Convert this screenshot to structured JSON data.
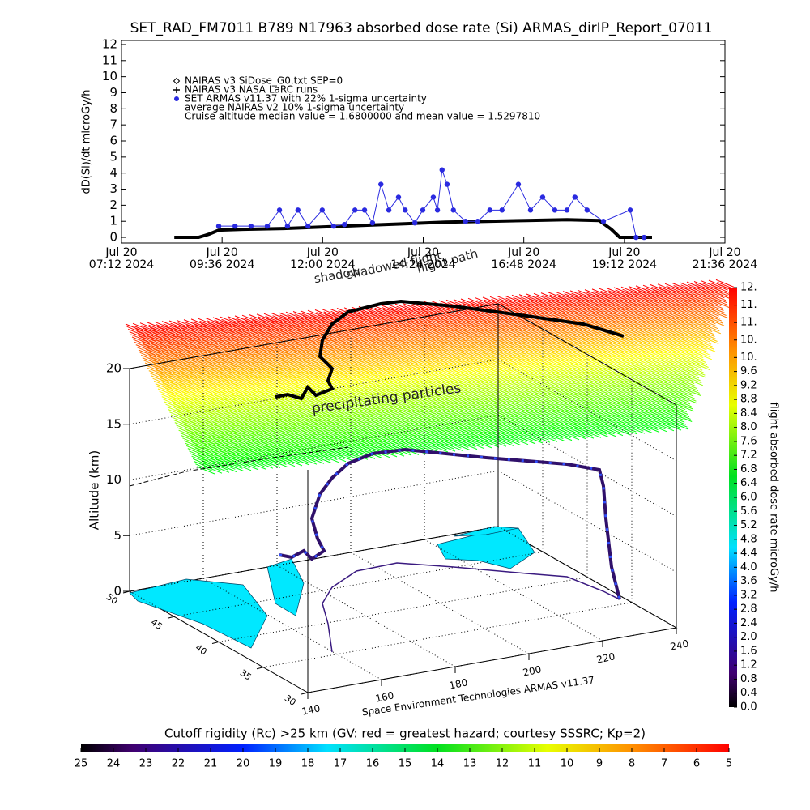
{
  "chart_data": {
    "type": "line",
    "title": "SET_RAD_FM7011  B789 N17963 absorbed dose rate (Si) ARMAS_dirIP_Report_07011",
    "y_label": "dD(Si)/dt microGy/h",
    "legend_notes": [
      "NAIRAS v3 SiDose_G0.txt SEP=0",
      "average NAIRAS v2 10% 1-sigma uncertainty",
      "Cruise altitude median value = 1.6800000 and mean value = 1.5297810"
    ],
    "series": [
      {
        "name": "NAIRAS v3 NASA LaRC runs",
        "color": "#000000",
        "x": [
          8.46,
          9.04,
          9.29,
          9.52,
          10.1,
          11.07,
          12.03,
          13.0,
          13.96,
          14.93,
          15.9,
          16.86,
          17.83,
          18.6,
          18.89,
          19.09,
          19.86
        ],
        "values": [
          0,
          0,
          0.2,
          0.45,
          0.5,
          0.55,
          0.65,
          0.75,
          0.85,
          0.95,
          1.0,
          1.05,
          1.1,
          1.05,
          0.5,
          0,
          0
        ]
      },
      {
        "name": "SET ARMAS v11.37 with 22% 1-sigma uncertainty",
        "color": "#2a2ae0",
        "x": [
          9.52,
          9.91,
          10.29,
          10.68,
          10.97,
          11.16,
          11.41,
          11.65,
          11.99,
          12.26,
          12.52,
          12.77,
          13.0,
          13.19,
          13.39,
          13.58,
          13.81,
          13.97,
          14.2,
          14.39,
          14.64,
          14.74,
          14.85,
          14.97,
          15.12,
          15.41,
          15.7,
          15.99,
          16.28,
          16.67,
          16.96,
          17.25,
          17.54,
          17.83,
          18.02,
          18.31,
          18.7,
          19.34,
          19.48,
          19.67
        ],
        "values": [
          0.7,
          0.7,
          0.7,
          0.7,
          1.7,
          0.7,
          1.7,
          0.7,
          1.7,
          0.7,
          0.8,
          1.7,
          1.7,
          0.9,
          3.3,
          1.7,
          2.5,
          1.7,
          0.9,
          1.7,
          2.5,
          1.7,
          4.2,
          3.3,
          1.7,
          1.0,
          1.0,
          1.7,
          1.7,
          3.3,
          1.7,
          2.5,
          1.7,
          1.7,
          2.5,
          1.7,
          1.0,
          1.7,
          0,
          0
        ]
      }
    ],
    "xlim": [
      7.2,
      21.6
    ],
    "xticks": [
      {
        "value": 7.2,
        "label": "Jul 20\n07:12 2024"
      },
      {
        "value": 9.6,
        "label": "Jul 20\n09:36 2024"
      },
      {
        "value": 12.0,
        "label": "Jul 20\n12:00 2024"
      },
      {
        "value": 14.4,
        "label": "Jul 20\n14:24 2024"
      },
      {
        "value": 16.8,
        "label": "Jul 20\n16:48 2024"
      },
      {
        "value": 19.2,
        "label": "Jul 20\n19:12 2024"
      },
      {
        "value": 21.6,
        "label": "Jul 20\n21:36 2024"
      }
    ],
    "ylim": [
      -0.35,
      12.25
    ],
    "yticks": [
      0,
      1,
      2,
      3,
      4,
      5,
      6,
      7,
      8,
      9,
      10,
      11,
      12
    ]
  },
  "plot3d": {
    "z_label": "Altitude (km)",
    "zlim": [
      0,
      20
    ],
    "zticks": [
      0,
      5,
      10,
      15,
      20
    ],
    "lat_lim": [
      30,
      50
    ],
    "lat_ticks": [
      50,
      45,
      40,
      35,
      30
    ],
    "lon_lim": [
      140,
      240
    ],
    "lon_ticks": [
      140,
      160,
      180,
      200,
      220,
      240
    ],
    "annotations": [
      "precipitating particles",
      "shadow",
      "shadowed flight",
      "flight path"
    ],
    "credit": "Space Environment Technologies ARMAS v11.37"
  },
  "dose_colorbar": {
    "label": "flight absorbed dose rate microGy/h",
    "lim": [
      0,
      12
    ],
    "ticks": [
      {
        "value": 0,
        "label": "0.0"
      },
      0.4,
      0.8,
      1.2,
      1.6,
      {
        "value": 2,
        "label": "2.0"
      },
      2.4,
      2.8,
      3.2,
      3.6,
      {
        "value": 4,
        "label": "4.0"
      },
      4.4,
      4.8,
      5.2,
      5.6,
      {
        "value": 6,
        "label": "6.0"
      },
      6.4,
      6.8,
      7.2,
      7.6,
      {
        "value": 8,
        "label": "8.0"
      },
      8.4,
      8.8,
      9.2,
      9.6,
      {
        "value": 10,
        "label": "10."
      },
      {
        "value": 10.5,
        "label": "10."
      },
      {
        "value": 11,
        "label": "11."
      },
      {
        "value": 11.5,
        "label": "11."
      },
      {
        "value": 12,
        "label": "12."
      }
    ]
  },
  "rigidity_colorbar": {
    "label": "Cutoff rigidity (Rc) >25 km (GV: red = greatest hazard; courtesy SSSRC; Kp=2)",
    "lim": [
      25,
      5
    ],
    "ticks": [
      25,
      24,
      23,
      22,
      21,
      20,
      19,
      18,
      17,
      16,
      15,
      14,
      13,
      12,
      11,
      10,
      9,
      8,
      7,
      6,
      5
    ]
  }
}
